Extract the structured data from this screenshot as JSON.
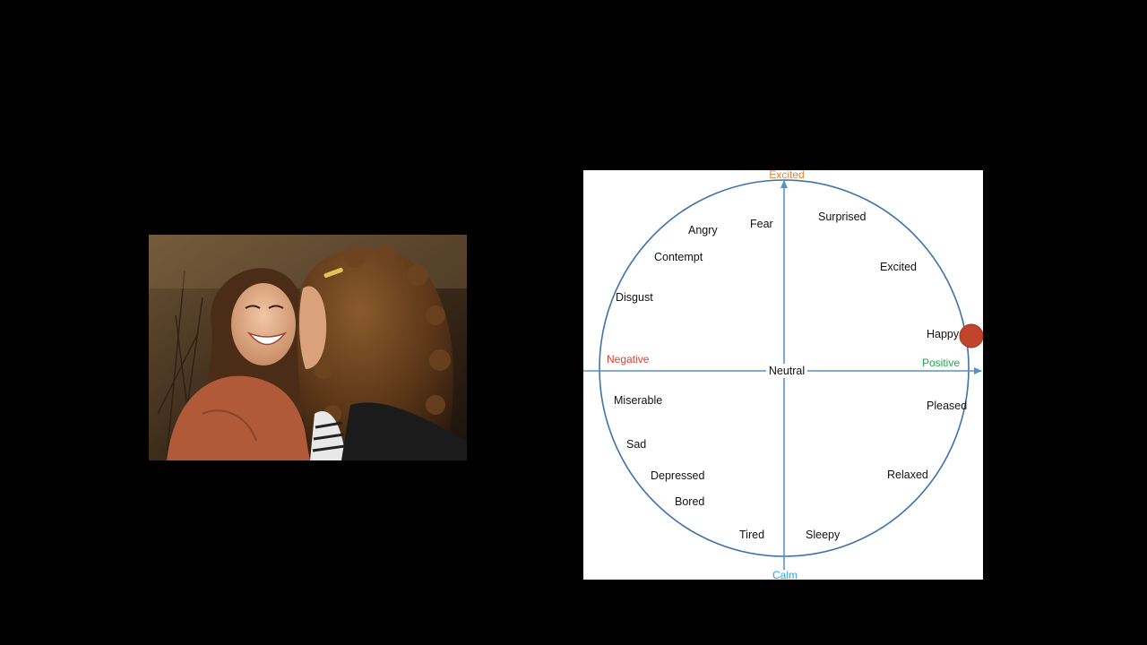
{
  "diagram": {
    "axes": {
      "top": {
        "label": "Excited",
        "color": "#ed7d31"
      },
      "bottom": {
        "label": "Calm",
        "color": "#2aa7e0"
      },
      "left": {
        "label": "Negative",
        "color": "#e03c31"
      },
      "right": {
        "label": "Positive",
        "color": "#1fa84f"
      },
      "center": {
        "label": "Neutral",
        "color": "#111111"
      }
    },
    "circle_color": "#3f72a8",
    "axis_color": "#5b8fc9",
    "marker": {
      "color": "#c0452a",
      "emotion": "Happy"
    },
    "emotions": [
      {
        "id": "fear",
        "label": "Fear"
      },
      {
        "id": "surprised",
        "label": "Surprised"
      },
      {
        "id": "angry",
        "label": "Angry"
      },
      {
        "id": "contempt",
        "label": "Contempt"
      },
      {
        "id": "excited",
        "label": "Excited"
      },
      {
        "id": "disgust",
        "label": "Disgust"
      },
      {
        "id": "happy",
        "label": "Happy"
      },
      {
        "id": "miserable",
        "label": "Miserable"
      },
      {
        "id": "pleased",
        "label": "Pleased"
      },
      {
        "id": "sad",
        "label": "Sad"
      },
      {
        "id": "depressed",
        "label": "Depressed"
      },
      {
        "id": "relaxed",
        "label": "Relaxed"
      },
      {
        "id": "bored",
        "label": "Bored"
      },
      {
        "id": "tired",
        "label": "Tired"
      },
      {
        "id": "sleepy",
        "label": "Sleepy"
      }
    ]
  }
}
